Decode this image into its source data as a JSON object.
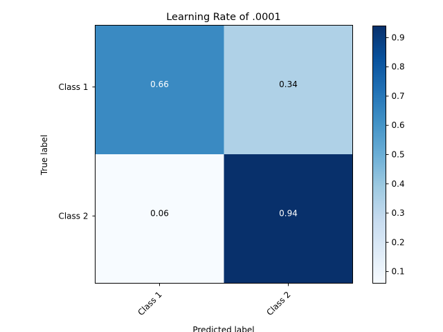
{
  "chart_data": {
    "type": "heatmap",
    "title": "Learning Rate of .0001",
    "xlabel": "Predicted label",
    "ylabel": "True label",
    "x_categories": [
      "Class 1",
      "Class 2"
    ],
    "y_categories": [
      "Class 1",
      "Class 2"
    ],
    "values": [
      [
        0.66,
        0.34
      ],
      [
        0.06,
        0.94
      ]
    ],
    "value_labels": [
      [
        "0.66",
        "0.34"
      ],
      [
        "0.06",
        "0.94"
      ]
    ],
    "colormap": "Blues",
    "colorbar": {
      "range": [
        0.06,
        0.94
      ],
      "ticks": [
        0.1,
        0.2,
        0.3,
        0.4,
        0.5,
        0.6,
        0.7,
        0.8,
        0.9
      ],
      "tick_labels": [
        "0.1",
        "0.2",
        "0.3",
        "0.4",
        "0.5",
        "0.6",
        "0.7",
        "0.8",
        "0.9"
      ]
    },
    "cell_colors": [
      [
        "#3a8ac2",
        "#afd1e7"
      ],
      [
        "#f7fbff",
        "#08306b"
      ]
    ],
    "cell_text_colors": [
      [
        "#ffffff",
        "#000000"
      ],
      [
        "#000000",
        "#ffffff"
      ]
    ],
    "grid": false
  }
}
